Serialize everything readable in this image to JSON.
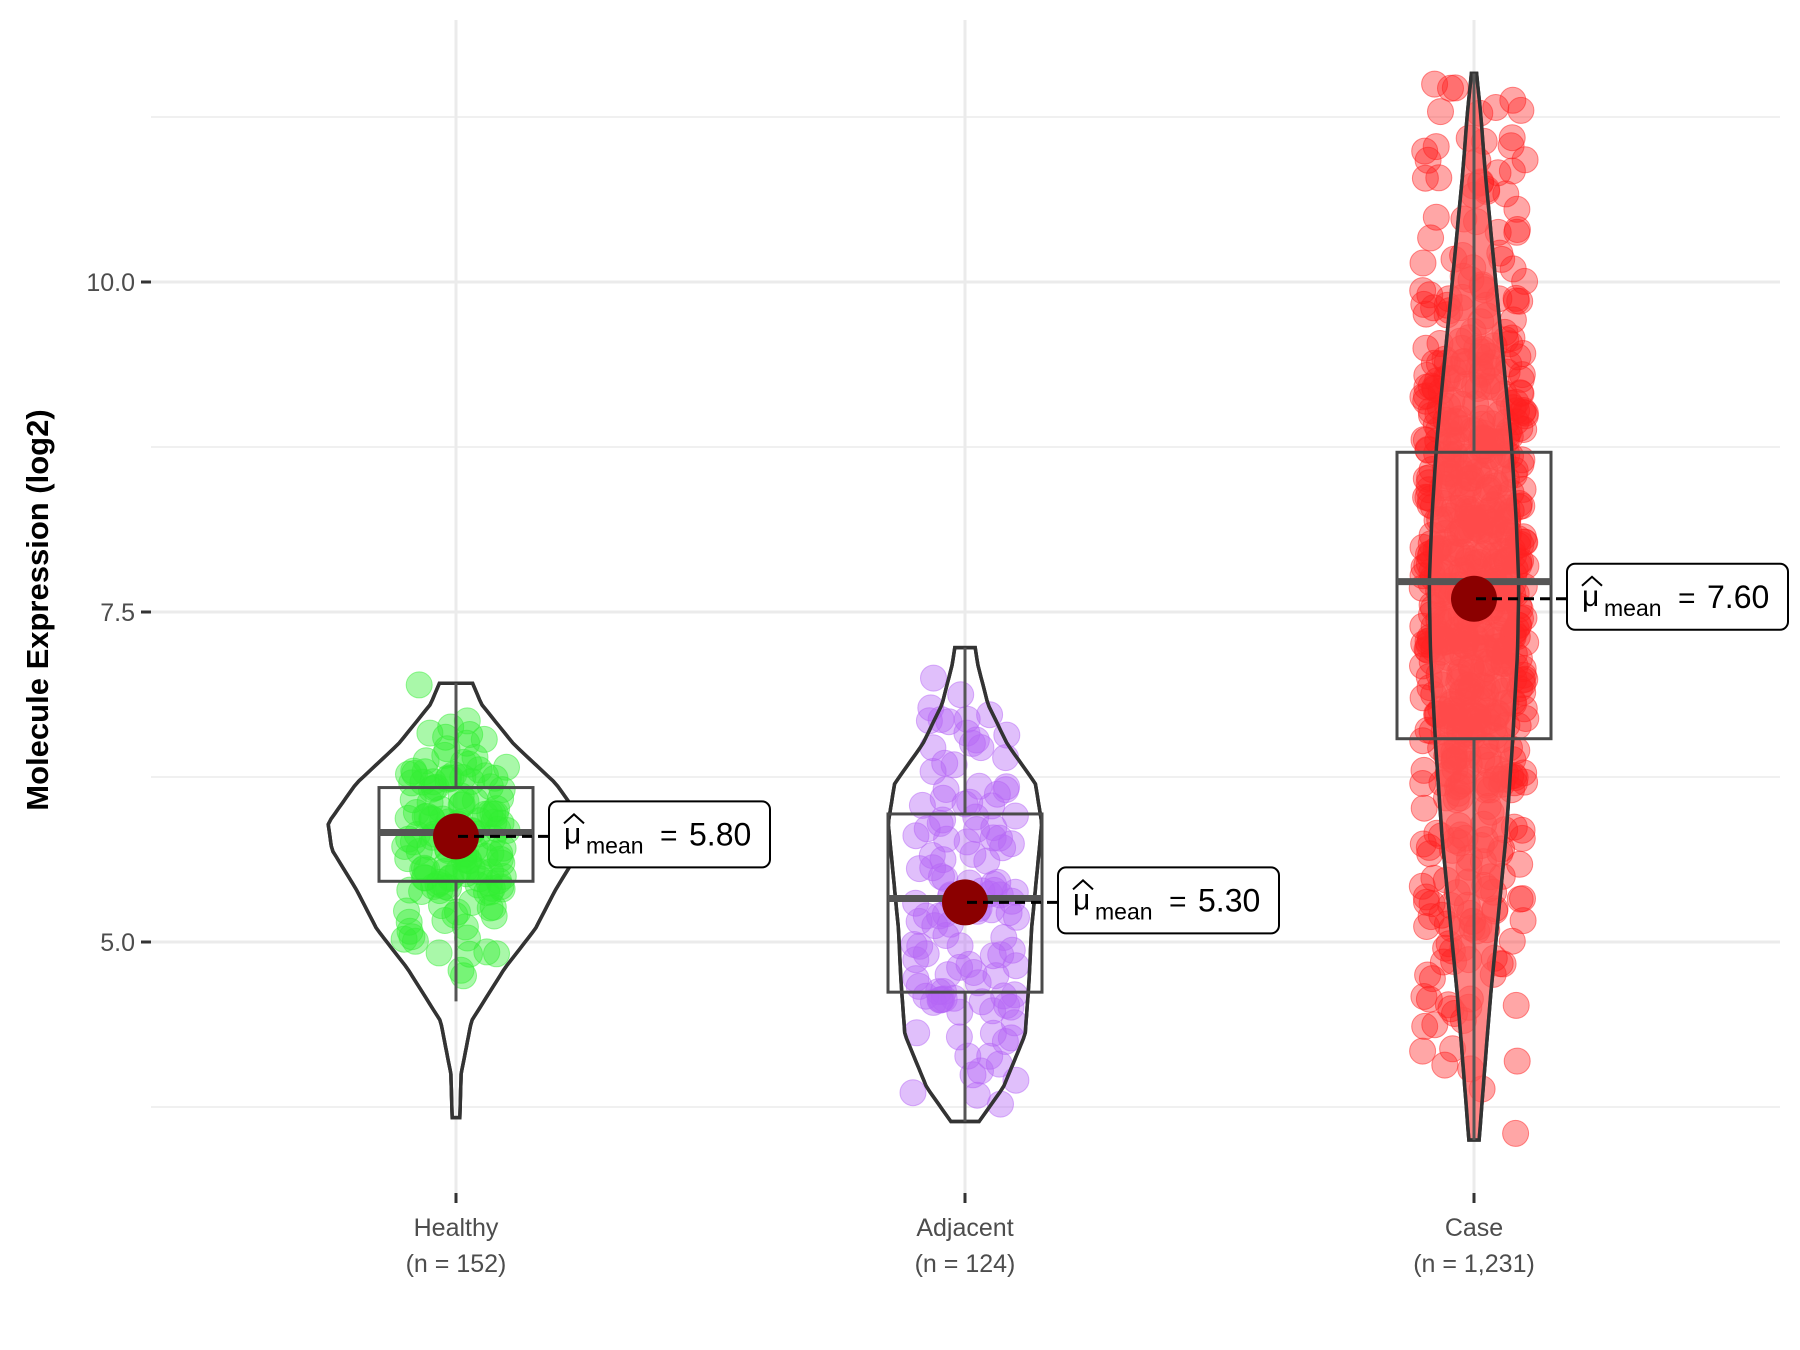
{
  "chart_data": {
    "type": "violin-box-jitter",
    "title": "",
    "xlabel": "",
    "ylabel": "Molecule Expression (log2)",
    "ylim": [
      3.2,
      12.1
    ],
    "y_ticks": [
      {
        "value": 5.0,
        "label": "5.0"
      },
      {
        "value": 7.5,
        "label": "7.5"
      },
      {
        "value": 10.0,
        "label": "10.0"
      }
    ],
    "y_minor_grid": [
      3.75,
      6.25,
      8.75,
      11.25
    ],
    "grid": true,
    "legend": "none",
    "mean_symbol": "μ",
    "mean_subscript": "mean",
    "groups": [
      {
        "name": "Healthy",
        "n_label": "(n = 152)",
        "n": 152,
        "color": "#33ee33",
        "mean": 5.8,
        "mean_label": "5.80",
        "median": 5.83,
        "q1": 5.46,
        "q3": 6.17,
        "whisker_low": 4.55,
        "whisker_high": 6.96,
        "min": 3.67,
        "max": 6.96,
        "violin_profile": [
          [
            3.67,
            0.03
          ],
          [
            4.0,
            0.04
          ],
          [
            4.4,
            0.12
          ],
          [
            4.8,
            0.38
          ],
          [
            5.1,
            0.62
          ],
          [
            5.4,
            0.78
          ],
          [
            5.7,
            0.97
          ],
          [
            5.9,
            1.0
          ],
          [
            6.2,
            0.78
          ],
          [
            6.5,
            0.45
          ],
          [
            6.8,
            0.2
          ],
          [
            6.96,
            0.13
          ]
        ]
      },
      {
        "name": "Adjacent",
        "n_label": "(n = 124)",
        "n": 124,
        "color": "#b566f5",
        "mean": 5.3,
        "mean_label": "5.30",
        "median": 5.33,
        "q1": 4.62,
        "q3": 5.97,
        "whisker_low": 3.64,
        "whisker_high": 7.23,
        "min": 3.64,
        "max": 7.23,
        "violin_profile": [
          [
            3.64,
            0.11
          ],
          [
            3.9,
            0.3
          ],
          [
            4.3,
            0.47
          ],
          [
            4.7,
            0.5
          ],
          [
            5.1,
            0.52
          ],
          [
            5.5,
            0.56
          ],
          [
            5.9,
            0.6
          ],
          [
            6.2,
            0.55
          ],
          [
            6.5,
            0.33
          ],
          [
            6.8,
            0.18
          ],
          [
            7.1,
            0.1
          ],
          [
            7.23,
            0.08
          ]
        ]
      },
      {
        "name": "Case",
        "n_label": "(n = 1,231)",
        "n": 1231,
        "color": "#ff2020",
        "mean": 7.6,
        "mean_label": "7.60",
        "median": 7.73,
        "q1": 6.54,
        "q3": 8.71,
        "whisker_low": 3.5,
        "whisker_high": 11.58,
        "min": 3.5,
        "max": 11.58,
        "violin_profile": [
          [
            3.5,
            0.04
          ],
          [
            4.0,
            0.08
          ],
          [
            4.6,
            0.13
          ],
          [
            5.2,
            0.19
          ],
          [
            5.8,
            0.25
          ],
          [
            6.5,
            0.3
          ],
          [
            7.2,
            0.34
          ],
          [
            7.7,
            0.35
          ],
          [
            8.2,
            0.33
          ],
          [
            8.8,
            0.29
          ],
          [
            9.5,
            0.22
          ],
          [
            10.2,
            0.15
          ],
          [
            10.8,
            0.09
          ],
          [
            11.3,
            0.05
          ],
          [
            11.58,
            0.02
          ]
        ]
      }
    ]
  }
}
